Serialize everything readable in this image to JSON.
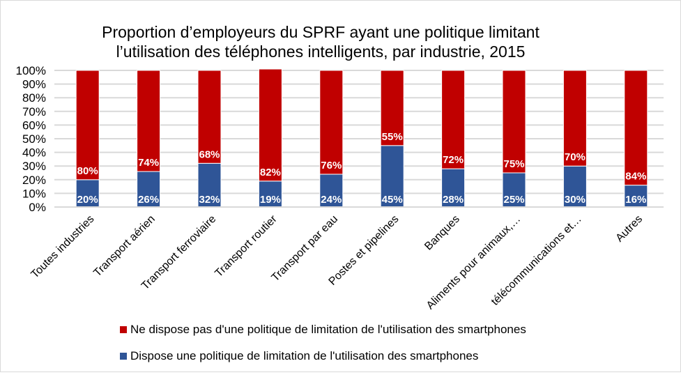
{
  "chart_data": {
    "type": "bar",
    "stacked": true,
    "percent_stacked": true,
    "title": "Proportion d’employeurs du SPRF ayant une politique limitant l’utilisation des téléphones intelligents, par industrie, 2015",
    "title_lines": [
      "Proportion d’employeurs du SPRF ayant une politique limitant",
      "l’utilisation des téléphones intelligents, par industrie, 2015"
    ],
    "xlabel": "",
    "ylabel": "",
    "ylim": [
      0,
      100
    ],
    "yticks": [
      "0%",
      "10%",
      "20%",
      "30%",
      "40%",
      "50%",
      "60%",
      "70%",
      "80%",
      "90%",
      "100%"
    ],
    "grid": true,
    "legend_position": "bottom",
    "categories": [
      "Toutes industries",
      "Transport aérien",
      "Transport ferroviaire",
      "Transport routier",
      "Transport par eau",
      "Postes et pipelines",
      "Banques",
      "Aliments pour animaux,…",
      "télécommunications et…",
      "Autres"
    ],
    "series": [
      {
        "name": "Dispose une politique de limitation de l'utilisation des smartphones",
        "color": "#2f5597",
        "values": [
          20,
          26,
          32,
          19,
          24,
          45,
          28,
          25,
          30,
          16
        ],
        "labels": [
          "20%",
          "26%",
          "32%",
          "19%",
          "24%",
          "45%",
          "28%",
          "25%",
          "30%",
          "16%"
        ]
      },
      {
        "name": "Ne dispose pas d'une politique de limitation de l'utilisation des smartphones",
        "color": "#c00000",
        "values": [
          80,
          74,
          68,
          82,
          76,
          55,
          72,
          75,
          70,
          84
        ],
        "labels": [
          "80%",
          "74%",
          "68%",
          "82%",
          "76%",
          "55%",
          "72%",
          "75%",
          "70%",
          "84%"
        ]
      }
    ],
    "legend": [
      {
        "name": "Ne dispose pas d'une politique de limitation de l'utilisation des smartphones",
        "color": "#c00000"
      },
      {
        "name": "Dispose une politique de limitation de l'utilisation des smartphones",
        "color": "#2f5597"
      }
    ]
  }
}
